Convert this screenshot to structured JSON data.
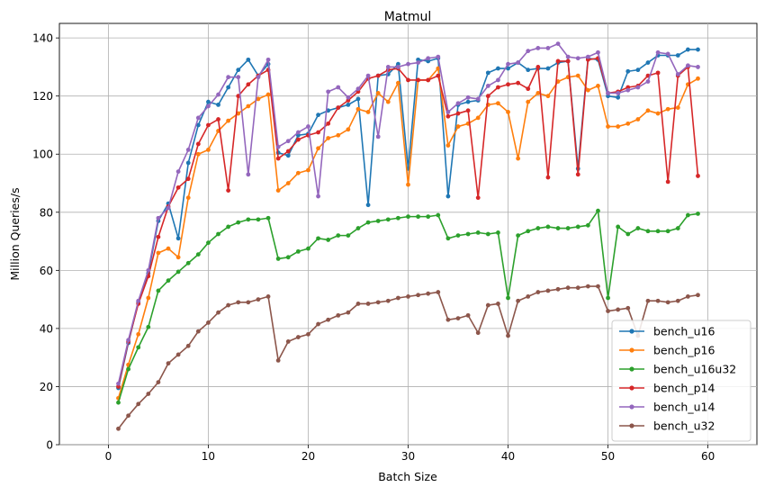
{
  "chart_data": {
    "type": "line",
    "title": "Matmul",
    "xlabel": "Batch Size",
    "ylabel": "Million Queries/s",
    "xlim": [
      -4.9,
      64.9
    ],
    "ylim": [
      0,
      145
    ],
    "xticks": [
      0,
      10,
      20,
      30,
      40,
      50,
      60
    ],
    "yticks": [
      0,
      20,
      40,
      60,
      80,
      100,
      120,
      140
    ],
    "grid": true,
    "legend_position": "lower-right",
    "x": [
      1,
      2,
      3,
      4,
      5,
      6,
      7,
      8,
      9,
      10,
      11,
      12,
      13,
      14,
      15,
      16,
      17,
      18,
      19,
      20,
      21,
      22,
      23,
      24,
      25,
      26,
      27,
      28,
      29,
      30,
      31,
      32,
      33,
      34,
      35,
      36,
      37,
      38,
      39,
      40,
      41,
      42,
      43,
      44,
      45,
      46,
      47,
      48,
      49,
      50,
      51,
      52,
      53,
      54,
      55,
      56,
      57,
      58,
      59
    ],
    "series": [
      {
        "name": "bench_u16",
        "color": "#1f77b4",
        "values": [
          19.5,
          35,
          49,
          59,
          77,
          83,
          71,
          97,
          110,
          118,
          117,
          123,
          129,
          132.5,
          127,
          131,
          100.5,
          99.5,
          106.5,
          107,
          113.5,
          115,
          116,
          117,
          119,
          82.5,
          127,
          127.5,
          131,
          95,
          132.5,
          132,
          133,
          85.5,
          117,
          118,
          118.5,
          128,
          129.5,
          129.5,
          131.5,
          129,
          129.5,
          129.5,
          131.5,
          132,
          95,
          133,
          132.5,
          120,
          119.5,
          128.5,
          129,
          131.5,
          134,
          134,
          134,
          136,
          136
        ]
      },
      {
        "name": "bench_p16",
        "color": "#ff7f0e",
        "values": [
          16,
          27.5,
          38,
          50.5,
          66,
          67.5,
          64.5,
          85,
          100,
          101.5,
          108,
          111.5,
          114,
          116.5,
          119,
          120.5,
          87.5,
          90,
          93.5,
          94.5,
          102,
          105.5,
          106.5,
          108.5,
          115.5,
          114.5,
          121,
          118,
          124.5,
          89.5,
          125.5,
          125.5,
          129.5,
          103,
          109.5,
          110.5,
          112.5,
          117,
          117.5,
          114.5,
          98.5,
          118,
          121,
          120,
          125,
          126.5,
          127,
          122,
          123.5,
          109.5,
          109.5,
          110.5,
          112,
          115,
          114,
          115.5,
          116,
          124,
          126
        ]
      },
      {
        "name": "bench_u16u32",
        "color": "#2ca02c",
        "values": [
          14.5,
          26,
          33.5,
          40.5,
          53,
          56.5,
          59.5,
          62.5,
          65.5,
          69.5,
          72.5,
          75,
          76.5,
          77.5,
          77.5,
          78,
          64,
          64.5,
          66.5,
          67.5,
          71,
          70.5,
          72,
          72,
          74.5,
          76.5,
          77,
          77.5,
          78,
          78.5,
          78.5,
          78.5,
          79,
          71,
          72,
          72.5,
          73,
          72.5,
          73,
          50.5,
          72,
          73.5,
          74.5,
          75,
          74.5,
          74.5,
          75,
          75.5,
          80.5,
          50.5,
          75,
          72.5,
          74.5,
          73.5,
          73.5,
          73.5,
          74.5,
          79,
          79.5
        ]
      },
      {
        "name": "bench_p14",
        "color": "#d62728",
        "values": [
          20,
          35.5,
          48.5,
          58,
          71.5,
          82,
          88.5,
          91.5,
          103.5,
          110,
          112,
          87.5,
          120,
          124,
          127,
          129,
          98.5,
          101,
          105,
          106.5,
          107.5,
          110.5,
          116,
          118.5,
          121.5,
          126,
          127,
          129,
          129.5,
          125.5,
          125.5,
          125.5,
          127,
          113,
          114,
          115,
          85,
          120,
          123,
          124,
          124.5,
          122.5,
          130,
          92,
          132,
          132,
          93,
          132.5,
          133,
          121,
          121.5,
          123,
          123.5,
          127,
          128,
          90.5,
          127,
          130,
          92.5
        ]
      },
      {
        "name": "bench_u14",
        "color": "#9467bd",
        "values": [
          21,
          36,
          49.5,
          60,
          78,
          81.5,
          94,
          101.5,
          112.5,
          116.5,
          120.5,
          126.5,
          126.5,
          93,
          126.5,
          132.5,
          102.5,
          104.5,
          107.5,
          109.5,
          85.5,
          121.5,
          123,
          119.5,
          122.5,
          127,
          106,
          130,
          130,
          131,
          131.5,
          133,
          133.5,
          114.5,
          117.5,
          119.5,
          119,
          123.5,
          125.5,
          131,
          131.5,
          135.5,
          136.5,
          136.5,
          138,
          133.5,
          133,
          133.5,
          135,
          121,
          121,
          122,
          123,
          125,
          135,
          134.5,
          127.5,
          130.5,
          130
        ]
      },
      {
        "name": "bench_u32",
        "color": "#8c564b",
        "values": [
          5.5,
          10,
          14,
          17.5,
          21.5,
          28,
          31,
          34,
          39,
          42,
          45.5,
          48,
          49,
          49,
          50,
          51,
          29,
          35.5,
          37,
          38,
          41.5,
          43,
          44.5,
          45.5,
          48.5,
          48.5,
          49,
          49.5,
          50.5,
          51,
          51.5,
          52,
          52.5,
          43,
          43.5,
          44.5,
          38.5,
          48,
          48.5,
          37.5,
          49.5,
          51,
          52.5,
          53,
          53.5,
          54,
          54,
          54.5,
          54.5,
          46,
          46.5,
          47,
          37.5,
          49.5,
          49.5,
          49,
          49.5,
          51,
          51.5
        ]
      }
    ]
  }
}
